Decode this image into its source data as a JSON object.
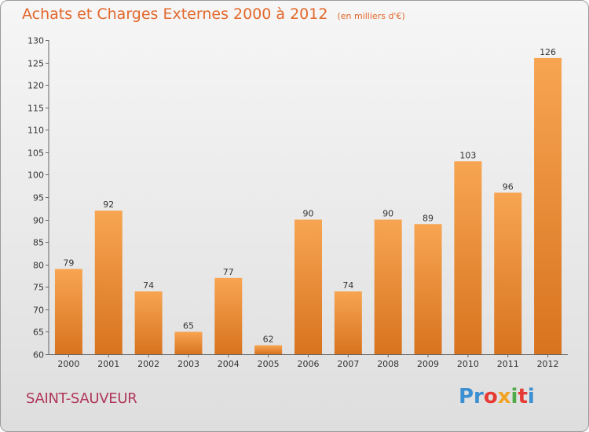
{
  "header": {
    "title": "Achats et Charges Externes 2000 à 2012",
    "subtitle": "(en milliers d'€)"
  },
  "footer": {
    "town": "SAINT-SAUVEUR",
    "logo_letters": [
      "Pr",
      "o",
      "x",
      "i",
      "t",
      "i"
    ]
  },
  "colors": {
    "bar_top": "#f7a552",
    "bar_bottom": "#d8731f",
    "title": "#e2672a",
    "town": "#b0375a"
  },
  "chart_data": {
    "type": "bar",
    "title": "Achats et Charges Externes 2000 à 2012",
    "subtitle": "(en milliers d'€)",
    "categories": [
      "2000",
      "2001",
      "2002",
      "2003",
      "2004",
      "2005",
      "2006",
      "2007",
      "2008",
      "2009",
      "2010",
      "2011",
      "2012"
    ],
    "values": [
      79,
      92,
      74,
      65,
      77,
      62,
      90,
      74,
      90,
      89,
      103,
      96,
      126
    ],
    "ylim": [
      60,
      130
    ],
    "yticks": [
      60,
      65,
      70,
      75,
      80,
      85,
      90,
      95,
      100,
      105,
      110,
      115,
      120,
      125,
      130
    ],
    "grid": false,
    "data_labels": true
  }
}
